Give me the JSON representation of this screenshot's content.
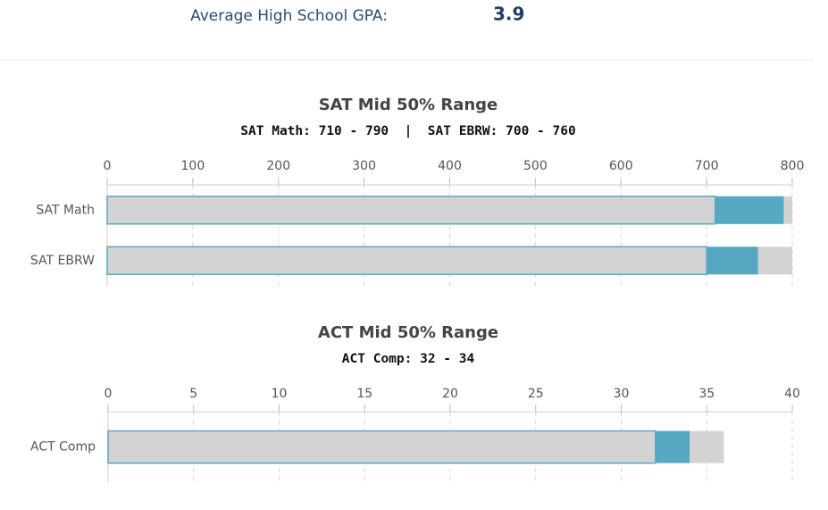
{
  "header": {
    "label": "Average High School GPA:",
    "value": "3.9"
  },
  "chart_data": [
    {
      "type": "range-bar",
      "title": "SAT Mid 50% Range",
      "subtitle": "SAT Math: 710 - 790  |  SAT EBRW: 700 - 760",
      "categories": [
        "SAT Math",
        "SAT EBRW"
      ],
      "low": [
        710,
        700
      ],
      "high": [
        790,
        760
      ],
      "max": [
        800,
        800
      ],
      "xlim": [
        0,
        800
      ],
      "xticks": [
        0,
        100,
        200,
        300,
        400,
        500,
        600,
        700,
        800
      ],
      "colors": {
        "base": "#d3d3d3",
        "range": "#57a8c3",
        "outline": "#5aa9c0"
      },
      "grid": true
    },
    {
      "type": "range-bar",
      "title": "ACT Mid 50% Range",
      "subtitle": "ACT Comp: 32 - 34",
      "categories": [
        "ACT Comp"
      ],
      "low": [
        32
      ],
      "high": [
        34
      ],
      "max": [
        36
      ],
      "xlim": [
        0,
        40
      ],
      "xticks": [
        0,
        5,
        10,
        15,
        20,
        25,
        30,
        35,
        40
      ],
      "colors": {
        "base": "#d3d3d3",
        "range": "#57a8c3",
        "outline": "#5aa9c0"
      },
      "grid": true
    }
  ]
}
